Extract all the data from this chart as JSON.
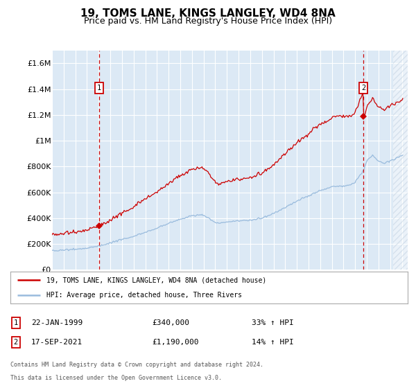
{
  "title": "19, TOMS LANE, KINGS LANGLEY, WD4 8NA",
  "subtitle": "Price paid vs. HM Land Registry's House Price Index (HPI)",
  "title_fontsize": 11,
  "subtitle_fontsize": 9,
  "ylabel_ticks": [
    "£0",
    "£200K",
    "£400K",
    "£600K",
    "£800K",
    "£1M",
    "£1.2M",
    "£1.4M",
    "£1.6M"
  ],
  "ytick_values": [
    0,
    200000,
    400000,
    600000,
    800000,
    1000000,
    1200000,
    1400000,
    1600000
  ],
  "ylim": [
    0,
    1700000
  ],
  "xlim_start": 1995.0,
  "xlim_end": 2025.5,
  "background_color": "#ffffff",
  "plot_bg_color": "#dce9f5",
  "grid_color": "#c8d8e8",
  "property_color": "#cc0000",
  "hpi_color": "#99bbdd",
  "annotation1_date": "22-JAN-1999",
  "annotation1_price": "£340,000",
  "annotation1_hpi": "33% ↑ HPI",
  "annotation1_year": 1999.06,
  "annotation1_value": 340000,
  "annotation2_date": "17-SEP-2021",
  "annotation2_price": "£1,190,000",
  "annotation2_hpi": "14% ↑ HPI",
  "annotation2_year": 2021.71,
  "annotation2_value": 1190000,
  "legend_label1": "19, TOMS LANE, KINGS LANGLEY, WD4 8NA (detached house)",
  "legend_label2": "HPI: Average price, detached house, Three Rivers",
  "footer1": "Contains HM Land Registry data © Crown copyright and database right 2024.",
  "footer2": "This data is licensed under the Open Government Licence v3.0.",
  "hatch_start": 2024.25
}
